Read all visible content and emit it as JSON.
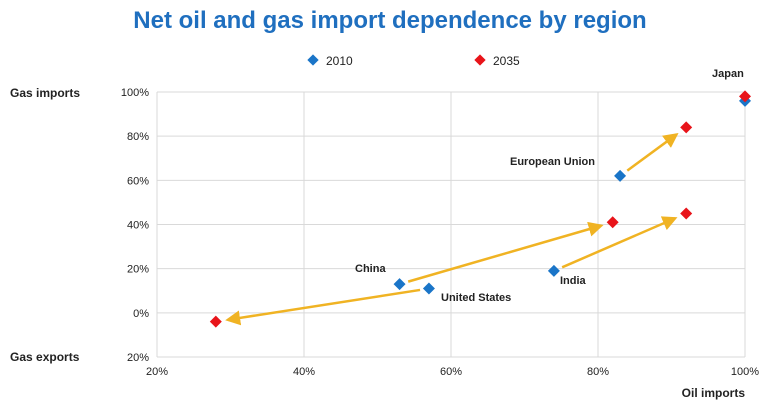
{
  "colors": {
    "title": "#1f6fbf",
    "series_2010": "#1a75c8",
    "series_2035": "#e8141a",
    "arrow": "#f0b323",
    "grid": "#d9d9d9",
    "axis": "#666666",
    "text": "#222222"
  },
  "chart_data": {
    "type": "scatter",
    "title": "Net oil and gas import dependence by region",
    "xlabel": "Oil imports",
    "ylabel_top": "Gas imports",
    "ylabel_bottom": "Gas exports",
    "xlim": [
      20,
      100
    ],
    "ylim": [
      -20,
      100
    ],
    "x_ticks": [
      {
        "value": 20,
        "label": "20%"
      },
      {
        "value": 40,
        "label": "40%"
      },
      {
        "value": 60,
        "label": "60%"
      },
      {
        "value": 80,
        "label": "80%"
      },
      {
        "value": 100,
        "label": "100%"
      }
    ],
    "y_ticks": [
      {
        "value": 100,
        "label": "100%"
      },
      {
        "value": 80,
        "label": "80%"
      },
      {
        "value": 60,
        "label": "60%"
      },
      {
        "value": 40,
        "label": "40%"
      },
      {
        "value": 20,
        "label": "20%"
      },
      {
        "value": 0,
        "label": "0%"
      },
      {
        "value": -20,
        "label": "20%"
      }
    ],
    "grid": true,
    "legend_position": "top",
    "series": [
      {
        "name": "2010",
        "marker": "diamond",
        "points": [
          {
            "region": "China",
            "x": 53,
            "y": 13
          },
          {
            "region": "United States",
            "x": 57,
            "y": 11
          },
          {
            "region": "India",
            "x": 74,
            "y": 19
          },
          {
            "region": "European Union",
            "x": 83,
            "y": 62
          },
          {
            "region": "Japan",
            "x": 100,
            "y": 96
          }
        ]
      },
      {
        "name": "2035",
        "marker": "diamond",
        "points": [
          {
            "region": "China",
            "x": 82,
            "y": 41
          },
          {
            "region": "United States",
            "x": 28,
            "y": -4
          },
          {
            "region": "India",
            "x": 92,
            "y": 45
          },
          {
            "region": "European Union",
            "x": 92,
            "y": 84
          },
          {
            "region": "Japan",
            "x": 100,
            "y": 98
          }
        ]
      }
    ],
    "annotations": [
      {
        "text": "China"
      },
      {
        "text": "United States"
      },
      {
        "text": "India"
      },
      {
        "text": "European Union"
      },
      {
        "text": "Japan"
      }
    ],
    "arrows": [
      {
        "from": [
          53,
          13
        ],
        "to": [
          82,
          41
        ]
      },
      {
        "from": [
          57,
          11
        ],
        "to": [
          28,
          -4
        ]
      },
      {
        "from": [
          74,
          19
        ],
        "to": [
          92,
          45
        ]
      },
      {
        "from": [
          83,
          62
        ],
        "to": [
          92,
          84
        ]
      }
    ]
  }
}
